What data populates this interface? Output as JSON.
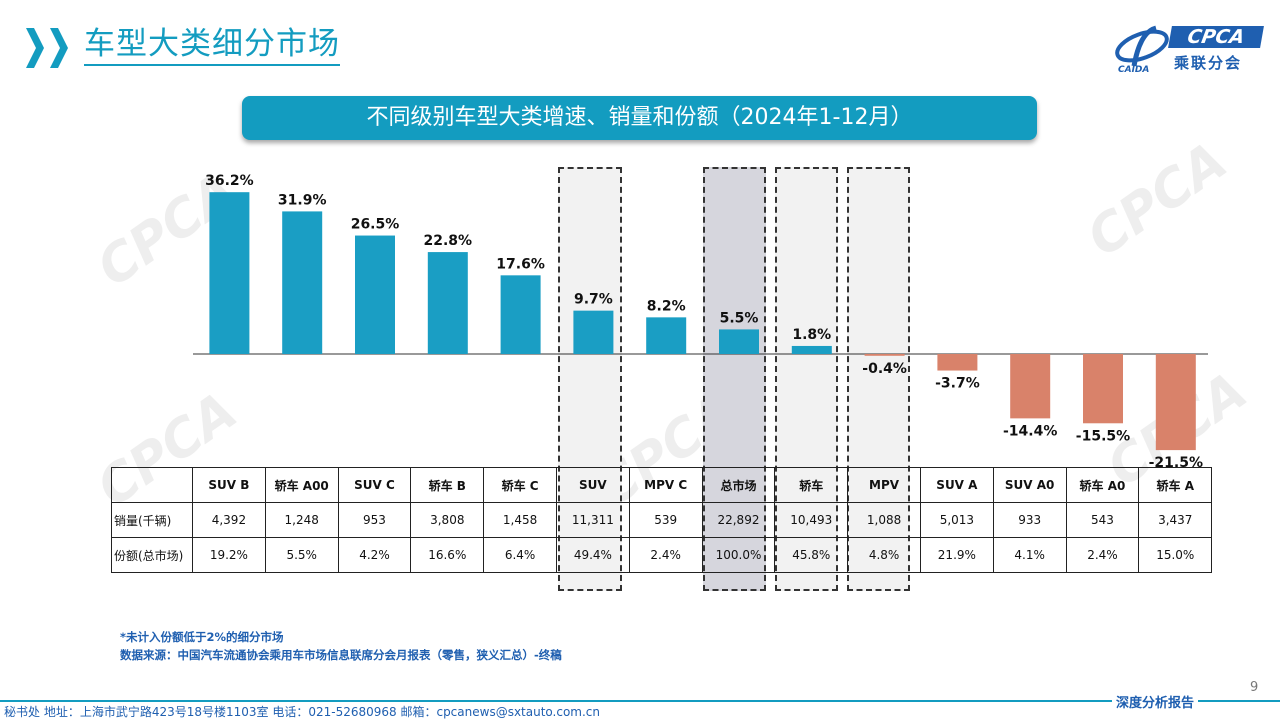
{
  "header": {
    "title": "车型大类细分市场",
    "logo_en": "CPCA",
    "logo_cn": "乘联分会"
  },
  "banner_title": "不同级别车型大类增速、销量和份额（2024年1-12月）",
  "colors": {
    "accent": "#139cc0",
    "positive": "#1a9ec4",
    "negative": "#d9826a",
    "brand_blue": "#1f5fb0"
  },
  "chart_data": {
    "type": "bar",
    "categories": [
      "SUV B",
      "轿车 A00",
      "SUV C",
      "轿车 B",
      "轿车 C",
      "SUV",
      "MPV C",
      "总市场",
      "轿车",
      "MPV",
      "SUV A",
      "SUV A0",
      "轿车 A0",
      "轿车 A"
    ],
    "values": [
      36.2,
      31.9,
      26.5,
      22.8,
      17.6,
      9.7,
      8.2,
      5.5,
      1.8,
      -0.4,
      -3.7,
      -14.4,
      -15.5,
      -21.5
    ],
    "value_labels": [
      "36.2%",
      "31.9%",
      "26.5%",
      "22.8%",
      "17.6%",
      "9.7%",
      "8.2%",
      "5.5%",
      "1.8%",
      "-0.4%",
      "-3.7%",
      "-14.4%",
      "-15.5%",
      "-21.5%"
    ],
    "highlighted": [
      "SUV",
      "总市场",
      "轿车",
      "MPV"
    ],
    "ylim": [
      -25,
      40
    ]
  },
  "table": {
    "row_labels": [
      "销量(千辆)",
      "份额(总市场)"
    ],
    "sales": [
      "4,392",
      "1,248",
      "953",
      "3,808",
      "1,458",
      "11,311",
      "539",
      "22,892",
      "10,493",
      "1,088",
      "5,013",
      "933",
      "543",
      "3,437"
    ],
    "share": [
      "19.2%",
      "5.5%",
      "4.2%",
      "16.6%",
      "6.4%",
      "49.4%",
      "2.4%",
      "100.0%",
      "45.8%",
      "4.8%",
      "21.9%",
      "4.1%",
      "2.4%",
      "15.0%"
    ]
  },
  "notes": {
    "line1": "*未计入份额低于2%的细分市场",
    "line2": "数据来源：中国汽车流通协会乘用车市场信息联席分会月报表（零售，狭义汇总）-终稿"
  },
  "footer": {
    "text": "秘书处   地址：上海市武宁路423号18号楼1103室   电话：021-52680968   邮箱：cpcanews@sxtauto.com.cn",
    "report_tag": "深度分析报告",
    "page_number": "9"
  }
}
